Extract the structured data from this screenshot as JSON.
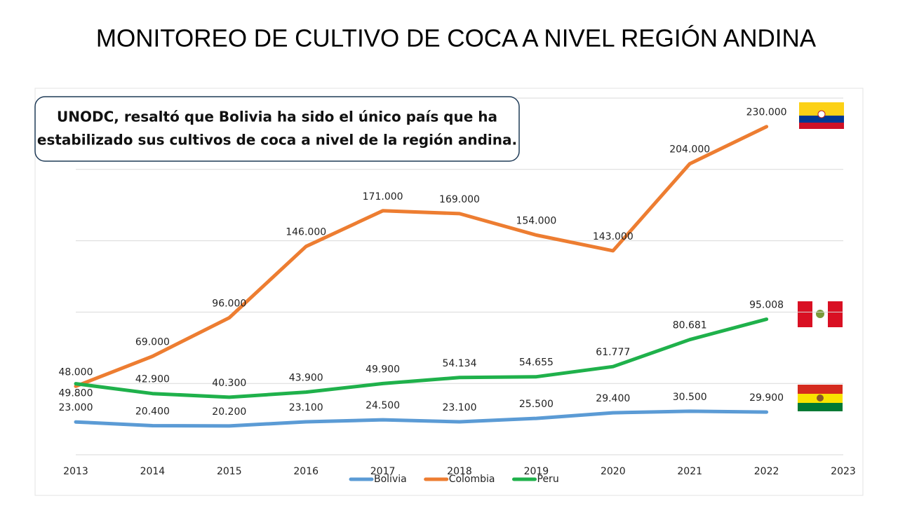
{
  "chart_data": {
    "type": "line",
    "title": "MONITOREO DE CULTIVO DE COCA A NIVEL REGIÓN ANDINA",
    "annotation": [
      "UNODC, resaltó que Bolivia ha sido el único país que ha",
      "estabilizado sus cultivos de coca a nivel de la región andina."
    ],
    "x": [
      2013,
      2014,
      2015,
      2016,
      2017,
      2018,
      2019,
      2020,
      2021,
      2022
    ],
    "xlim": [
      2013,
      2023
    ],
    "xticks": [
      2013,
      2014,
      2015,
      2016,
      2017,
      2018,
      2019,
      2020,
      2021,
      2022,
      2023
    ],
    "ylim": [
      0,
      250000
    ],
    "yticks": [
      0,
      50000,
      100000,
      150000,
      200000,
      250000
    ],
    "y_tick_labels": false,
    "grid": true,
    "legend": "bottom",
    "series": [
      {
        "name": "Bolivia",
        "color": "#5b9bd5",
        "values": [
          23000,
          20400,
          20200,
          23100,
          24500,
          23100,
          25500,
          29400,
          30500,
          29900
        ],
        "value_labels": [
          "23.000",
          "20.400",
          "20.200",
          "23.100",
          "24.500",
          "23.100",
          "25.500",
          "29.400",
          "30.500",
          "29.900"
        ]
      },
      {
        "name": "Colombia",
        "color": "#ed7d31",
        "values": [
          48000,
          69000,
          96000,
          146000,
          171000,
          169000,
          154000,
          143000,
          204000,
          230000
        ],
        "value_labels": [
          "48.000",
          "69.000",
          "96.000",
          "146.000",
          "171.000",
          "169.000",
          "154.000",
          "143.000",
          "204.000",
          "230.000"
        ]
      },
      {
        "name": "Peru",
        "color": "#1fb14b",
        "values": [
          49800,
          42900,
          40300,
          43900,
          49900,
          54134,
          54655,
          61777,
          80681,
          95008
        ],
        "value_labels": [
          "49.800",
          "42.900",
          "40.300",
          "43.900",
          "49.900",
          "54.134",
          "54.655",
          "61.777",
          "80.681",
          "95.008"
        ]
      }
    ]
  }
}
